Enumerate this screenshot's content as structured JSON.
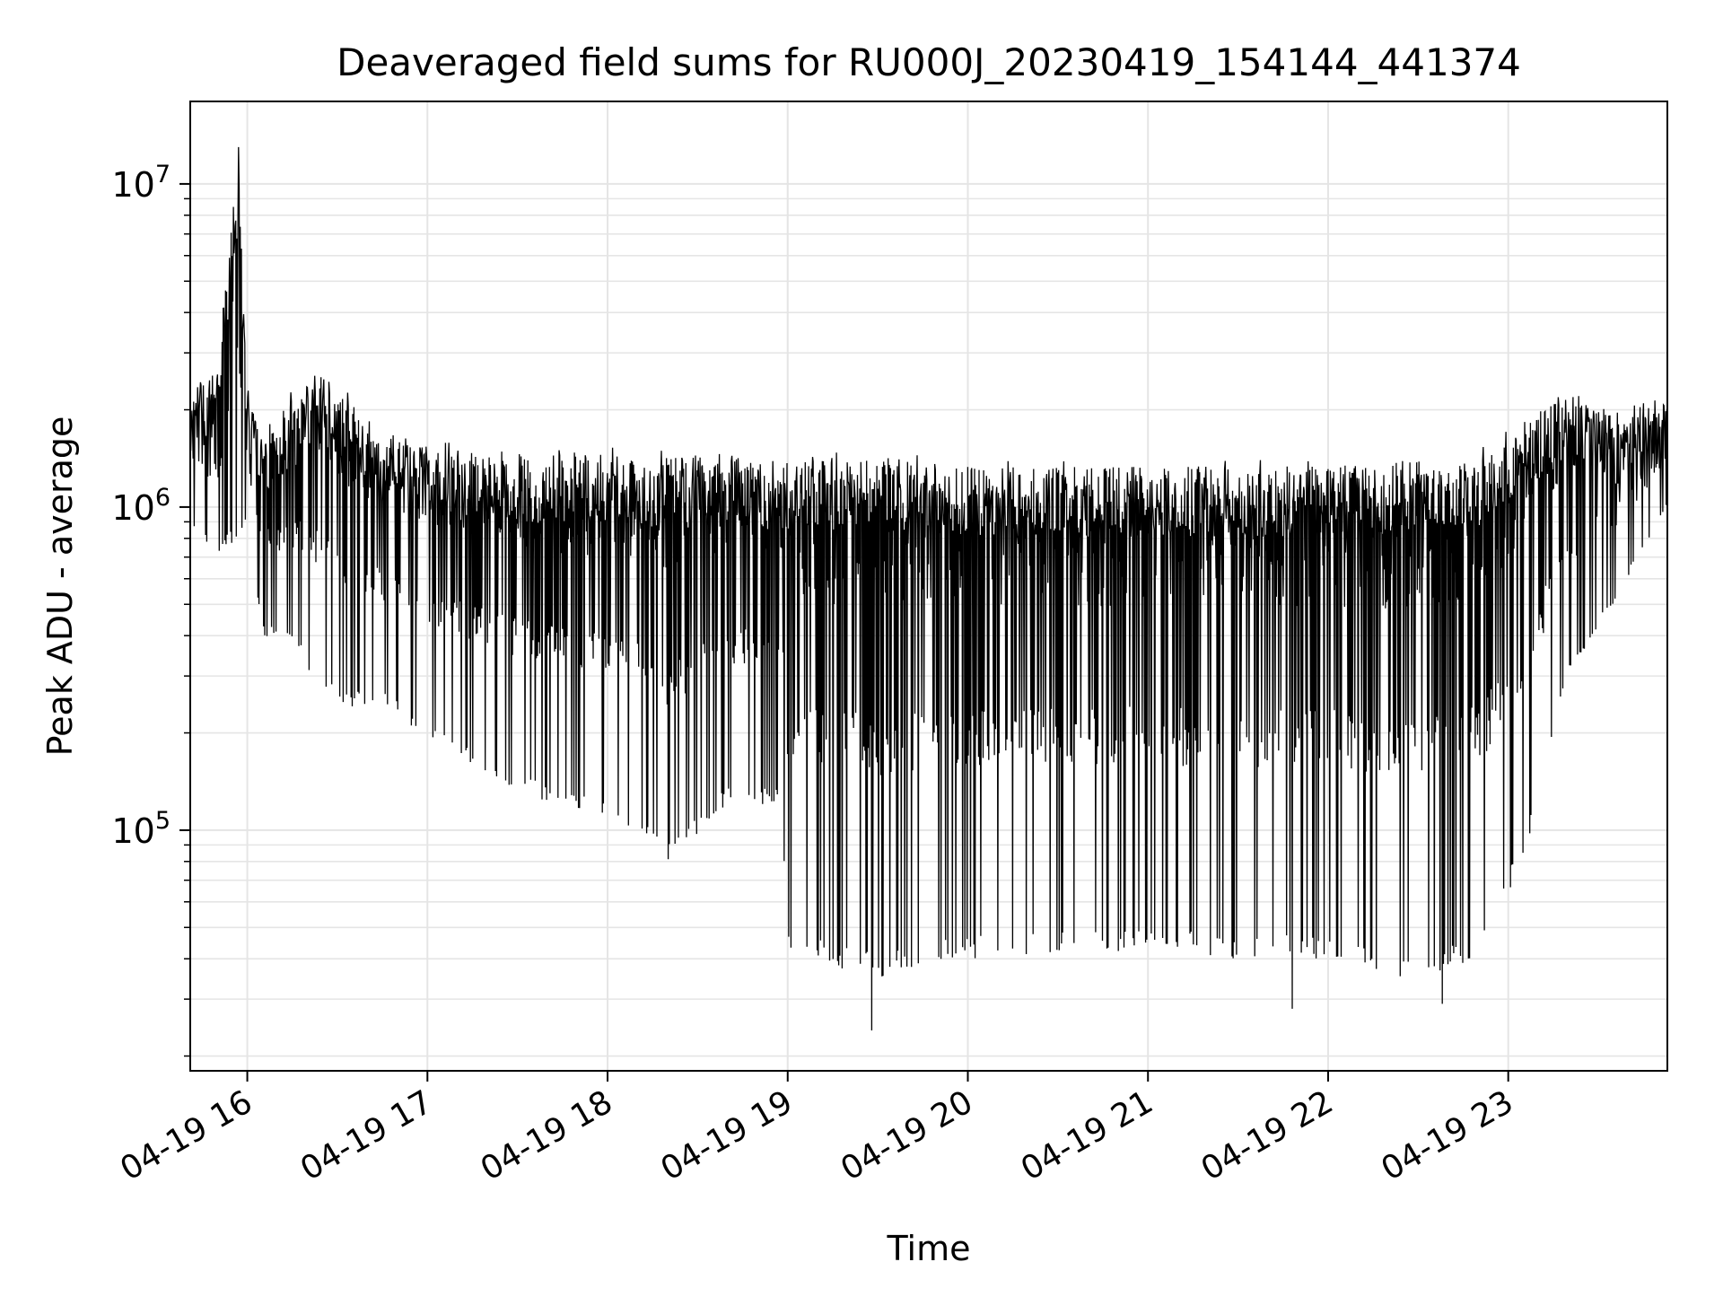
{
  "chart_data": {
    "type": "line",
    "title": "Deaveraged field sums for RU000J_20230419_154144_441374",
    "xlabel": "Time",
    "ylabel": "Peak ADU - average",
    "yscale": "log",
    "ylim": [
      18000,
      18000000
    ],
    "xlim": [
      "2023-04-19 15:41",
      "2023-04-19 23:53"
    ],
    "grid": true,
    "line_color": "#000000",
    "grid_color": "#e5e5e5",
    "x_ticks": [
      {
        "value": "2023-04-19 16:00",
        "label": "04-19 16"
      },
      {
        "value": "2023-04-19 17:00",
        "label": "04-19 17"
      },
      {
        "value": "2023-04-19 18:00",
        "label": "04-19 18"
      },
      {
        "value": "2023-04-19 19:00",
        "label": "04-19 19"
      },
      {
        "value": "2023-04-19 20:00",
        "label": "04-19 20"
      },
      {
        "value": "2023-04-19 21:00",
        "label": "04-19 21"
      },
      {
        "value": "2023-04-19 22:00",
        "label": "04-19 22"
      },
      {
        "value": "2023-04-19 23:00",
        "label": "04-19 23"
      }
    ],
    "y_ticks": [
      {
        "value": 100000,
        "mantissa": "10",
        "exponent": "5"
      },
      {
        "value": 1000000,
        "mantissa": "10",
        "exponent": "6"
      },
      {
        "value": 10000000,
        "mantissa": "10",
        "exponent": "7"
      }
    ],
    "envelope": [
      {
        "t": "15:41",
        "upper": 2500000,
        "lower": 900000
      },
      {
        "t": "15:50",
        "upper": 2800000,
        "lower": 700000
      },
      {
        "t": "15:57",
        "upper": 13000000,
        "lower": 800000
      },
      {
        "t": "16:00",
        "upper": 2600000,
        "lower": 900000
      },
      {
        "t": "16:05",
        "upper": 1800000,
        "lower": 400000
      },
      {
        "t": "16:15",
        "upper": 2300000,
        "lower": 380000
      },
      {
        "t": "16:25",
        "upper": 2700000,
        "lower": 260000
      },
      {
        "t": "16:35",
        "upper": 2200000,
        "lower": 240000
      },
      {
        "t": "16:45",
        "upper": 1700000,
        "lower": 250000
      },
      {
        "t": "17:00",
        "upper": 1600000,
        "lower": 190000
      },
      {
        "t": "17:30",
        "upper": 1550000,
        "lower": 130000
      },
      {
        "t": "18:00",
        "upper": 1550000,
        "lower": 110000
      },
      {
        "t": "18:20",
        "upper": 1500000,
        "lower": 80000
      },
      {
        "t": "18:40",
        "upper": 1500000,
        "lower": 120000
      },
      {
        "t": "18:58",
        "upper": 1450000,
        "lower": 120000
      },
      {
        "t": "19:00",
        "upper": 1450000,
        "lower": 40000
      },
      {
        "t": "19:30",
        "upper": 1500000,
        "lower": 35000
      },
      {
        "t": "20:00",
        "upper": 1400000,
        "lower": 40000
      },
      {
        "t": "20:30",
        "upper": 1400000,
        "lower": 42000
      },
      {
        "t": "21:00",
        "upper": 1400000,
        "lower": 42000
      },
      {
        "t": "21:30",
        "upper": 1400000,
        "lower": 40000
      },
      {
        "t": "22:00",
        "upper": 1400000,
        "lower": 40000
      },
      {
        "t": "22:30",
        "upper": 1450000,
        "lower": 34000
      },
      {
        "t": "22:50",
        "upper": 1500000,
        "lower": 40000
      },
      {
        "t": "23:05",
        "upper": 2000000,
        "lower": 80000
      },
      {
        "t": "23:20",
        "upper": 2300000,
        "lower": 300000
      },
      {
        "t": "23:35",
        "upper": 2000000,
        "lower": 500000
      },
      {
        "t": "23:53",
        "upper": 2200000,
        "lower": 1000000
      }
    ],
    "notable_points": [
      {
        "t": "15:57",
        "value": 13000000
      },
      {
        "t": "19:28",
        "value": 24000
      },
      {
        "t": "21:48",
        "value": 28000
      },
      {
        "t": "22:38",
        "value": 29000
      }
    ]
  }
}
